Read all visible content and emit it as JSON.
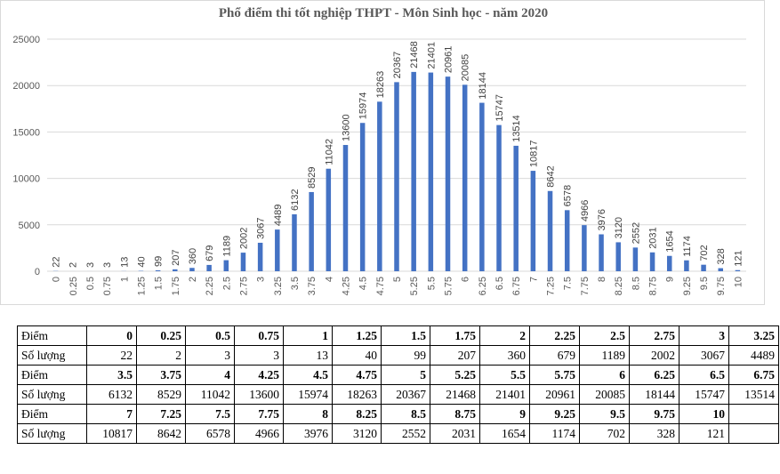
{
  "chart_data": {
    "type": "bar",
    "title": "Phổ điểm thi tốt nghiệp THPT - Môn Sinh học - năm 2020",
    "xlabel": "",
    "ylabel": "",
    "ylim": [
      0,
      25000
    ],
    "yticks": [
      0,
      5000,
      10000,
      15000,
      20000,
      25000
    ],
    "grid": true,
    "bar_color": "#4472c4",
    "categories": [
      "0",
      "0.25",
      "0.5",
      "0.75",
      "1",
      "1.25",
      "1.5",
      "1.75",
      "2",
      "2.25",
      "2.5",
      "2.75",
      "3",
      "3.25",
      "3.5",
      "3.75",
      "4",
      "4.25",
      "4.5",
      "4.75",
      "5",
      "5.25",
      "5.5",
      "5.75",
      "6",
      "6.25",
      "6.5",
      "6.75",
      "7",
      "7.25",
      "7.5",
      "7.75",
      "8",
      "8.25",
      "8.5",
      "8.75",
      "9",
      "9.25",
      "9.5",
      "9.75",
      "10"
    ],
    "values": [
      22,
      2,
      3,
      3,
      13,
      40,
      99,
      207,
      360,
      679,
      1189,
      2002,
      3067,
      4489,
      6132,
      8529,
      11042,
      13600,
      15974,
      18263,
      20367,
      21468,
      21401,
      20961,
      20085,
      18144,
      15747,
      13514,
      10817,
      8642,
      6578,
      4966,
      3976,
      3120,
      2552,
      2031,
      1654,
      1174,
      702,
      328,
      121
    ]
  },
  "table": {
    "row_labels": {
      "diem": "Điểm",
      "so_luong": "Số lượng"
    },
    "blocks": [
      {
        "diem": [
          "0",
          "0.25",
          "0.5",
          "0.75",
          "1",
          "1.25",
          "1.5",
          "1.75",
          "2",
          "2.25",
          "2.5",
          "2.75",
          "3",
          "3.25"
        ],
        "so_luong": [
          "22",
          "2",
          "3",
          "3",
          "13",
          "40",
          "99",
          "207",
          "360",
          "679",
          "1189",
          "2002",
          "3067",
          "4489"
        ]
      },
      {
        "diem": [
          "3.5",
          "3.75",
          "4",
          "4.25",
          "4.5",
          "4.75",
          "5",
          "5.25",
          "5.5",
          "5.75",
          "6",
          "6.25",
          "6.5",
          "6.75"
        ],
        "so_luong": [
          "6132",
          "8529",
          "11042",
          "13600",
          "15974",
          "18263",
          "20367",
          "21468",
          "21401",
          "20961",
          "20085",
          "18144",
          "15747",
          "13514"
        ]
      },
      {
        "diem": [
          "7",
          "7.25",
          "7.5",
          "7.75",
          "8",
          "8.25",
          "8.5",
          "8.75",
          "9",
          "9.25",
          "9.5",
          "9.75",
          "10",
          ""
        ],
        "so_luong": [
          "10817",
          "8642",
          "6578",
          "4966",
          "3976",
          "3120",
          "2552",
          "2031",
          "1654",
          "1174",
          "702",
          "328",
          "121",
          ""
        ]
      }
    ]
  }
}
